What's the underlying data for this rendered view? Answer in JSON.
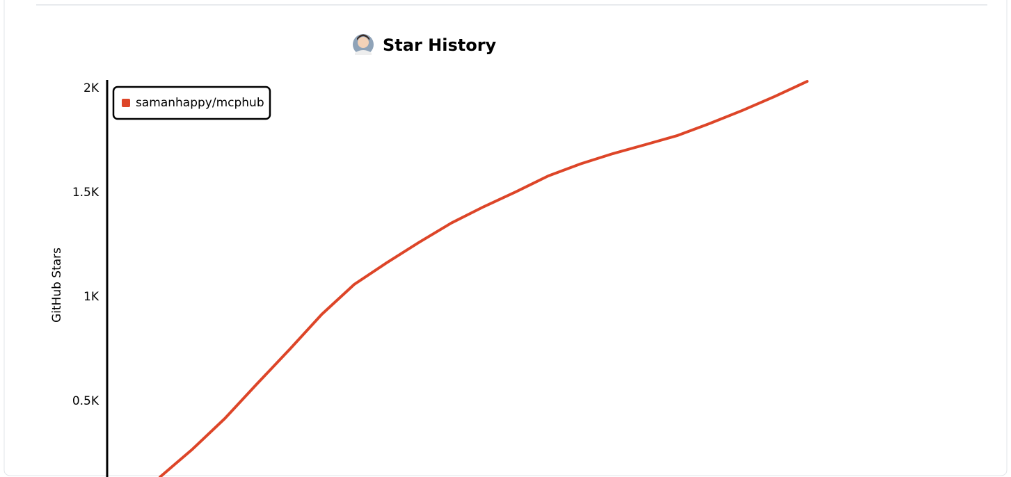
{
  "chart_data": {
    "type": "line",
    "title": "Star History",
    "y_label": "GitHub Stars",
    "categories": [
      null,
      null,
      null,
      null,
      null,
      null,
      null,
      null,
      null,
      null,
      null,
      null,
      null,
      null,
      null,
      null,
      null,
      null,
      null,
      null,
      null
    ],
    "series": [
      {
        "name": "samanhappy/mcphub",
        "color": "#dd4528",
        "values": [
          137,
          270,
          417,
          584,
          748,
          917,
          1060,
          1163,
          1261,
          1354,
          1432,
          1504,
          1580,
          1638,
          1687,
          1730,
          1774,
          1832,
          1894,
          1961,
          2033
        ]
      }
    ],
    "ylim": [
      137,
      2040
    ],
    "yticks": [
      {
        "value": 500,
        "label": "0.5K"
      },
      {
        "value": 1000,
        "label": "1K"
      },
      {
        "value": 1500,
        "label": "1.5K"
      },
      {
        "value": 2000,
        "label": "2K"
      }
    ],
    "legend": "top-left",
    "grid": false
  }
}
